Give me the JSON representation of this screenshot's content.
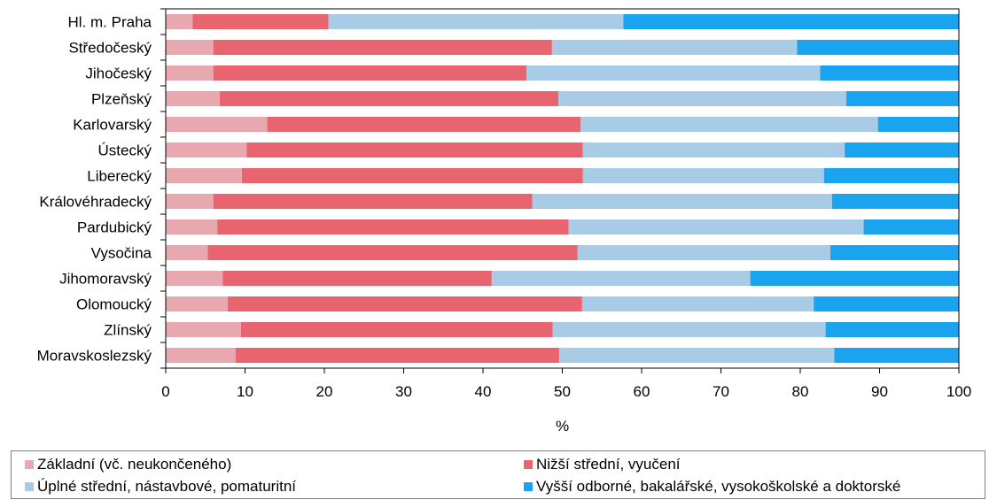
{
  "chart_data": {
    "type": "bar",
    "orientation": "horizontal",
    "stacked": true,
    "categories": [
      "Hl. m. Praha",
      "Středočeský",
      "Jihočeský",
      "Plzeňský",
      "Karlovarský",
      "Ústecký",
      "Liberecký",
      "Královéhradecký",
      "Pardubický",
      "Vysočina",
      "Jihomoravský",
      "Olomoucký",
      "Zlínský",
      "Moravskoslezský"
    ],
    "series": [
      {
        "name": "Základní (vč. neukončeného)",
        "color": "#e8a8b0",
        "values": [
          3.4,
          6.0,
          6.0,
          6.8,
          12.8,
          10.2,
          9.6,
          6.0,
          6.5,
          5.3,
          7.2,
          7.8,
          9.5,
          8.8
        ]
      },
      {
        "name": "Nižší střední, vyučení",
        "color": "#e8646e",
        "values": [
          17.1,
          42.7,
          39.5,
          42.7,
          39.5,
          42.4,
          43.0,
          40.2,
          44.3,
          46.6,
          33.9,
          44.7,
          39.3,
          40.8
        ]
      },
      {
        "name": "Úplné střední, nástavbové, pomaturitní",
        "color": "#a8cce6",
        "values": [
          37.2,
          30.9,
          37.0,
          36.3,
          37.5,
          33.0,
          30.4,
          37.8,
          37.2,
          31.9,
          32.6,
          29.2,
          34.4,
          34.7
        ]
      },
      {
        "name": "Vyšší odborné, bakalářské, vysokoškolské a doktorské",
        "color": "#1aa3ef",
        "values": [
          42.3,
          20.4,
          17.5,
          14.2,
          10.2,
          14.4,
          17.0,
          16.0,
          12.0,
          16.2,
          26.3,
          18.3,
          16.8,
          15.7
        ]
      }
    ],
    "xlabel": "%",
    "ylabel": "",
    "xlim": [
      0,
      100
    ],
    "xticks": [
      "0",
      "10",
      "20",
      "30",
      "40",
      "50",
      "60",
      "70",
      "80",
      "90",
      "100"
    ],
    "grid": false,
    "legend_position": "bottom"
  }
}
